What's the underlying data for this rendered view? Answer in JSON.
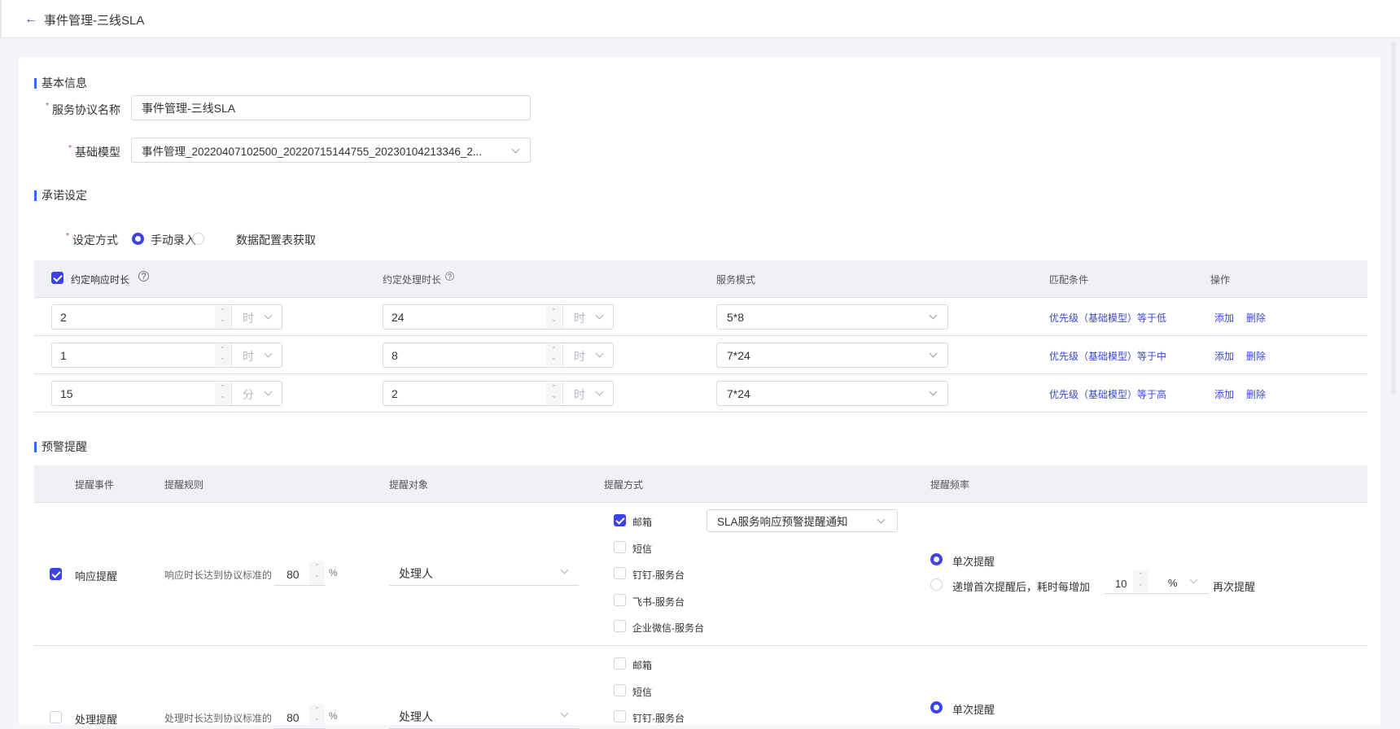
{
  "header": {
    "title": "事件管理-三线SLA",
    "back_icon": "arrow-left-icon"
  },
  "basic": {
    "section": "基本信息",
    "name_label": "服务协议名称",
    "name_value": "事件管理-三线SLA",
    "model_label": "基础模型",
    "model_value": "事件管理_20220407102500_20220715144755_20230104213346_2..."
  },
  "commit": {
    "section": "承诺设定",
    "mode_label": "设定方式",
    "mode_options": [
      "手动录入",
      "数据配置表获取"
    ],
    "mode_selected": 0,
    "headers": {
      "response": "约定响应时长",
      "handle": "约定处理时长",
      "service": "服务模式",
      "match": "匹配条件",
      "ops": "操作"
    },
    "response_checked": true,
    "rows": [
      {
        "response": "2",
        "response_unit": "时",
        "handle": "24",
        "handle_unit": "时",
        "service": "5*8",
        "match": "优先级（基础模型）等于低",
        "add": "添加",
        "del": "删除"
      },
      {
        "response": "1",
        "response_unit": "时",
        "handle": "8",
        "handle_unit": "时",
        "service": "7*24",
        "match": "优先级（基础模型）等于中",
        "add": "添加",
        "del": "删除"
      },
      {
        "response": "15",
        "response_unit": "分",
        "handle": "2",
        "handle_unit": "时",
        "service": "7*24",
        "match": "优先级（基础模型）等于高",
        "add": "添加",
        "del": "删除"
      }
    ]
  },
  "alert": {
    "section": "预警提醒",
    "headers": {
      "event": "提醒事件",
      "rule": "提醒规则",
      "target": "提醒对象",
      "method": "提醒方式",
      "freq": "提醒频率"
    },
    "methods": [
      "邮箱",
      "短信",
      "钉钉-服务台",
      "飞书-服务台",
      "企业微信-服务台"
    ],
    "rows": [
      {
        "checked": true,
        "event": "响应提醒",
        "rule": "响应时长达到协议标准的",
        "percent": "80",
        "pct_unit": "%",
        "target": "处理人",
        "method_checked": [
          true,
          false,
          false,
          false,
          false
        ],
        "email_template": "SLA服务响应预警提醒通知",
        "freq_options": [
          "单次提醒",
          "递增首次提醒后，耗时每增加"
        ],
        "freq_selected": 0,
        "increment": "10",
        "increment_unit": "%",
        "freq_suffix": "再次提醒"
      },
      {
        "checked": false,
        "event": "处理提醒",
        "rule": "处理时长达到协议标准的",
        "percent": "80",
        "pct_unit": "%",
        "target": "处理人",
        "method_checked": [
          false,
          false,
          false
        ],
        "freq_options": [
          "单次提醒"
        ],
        "freq_selected": 0
      }
    ]
  },
  "colors": {
    "accent": "#3c43e6",
    "link": "#3b47d8",
    "section_bar": "#2f6bff",
    "required": "#e0383e"
  }
}
